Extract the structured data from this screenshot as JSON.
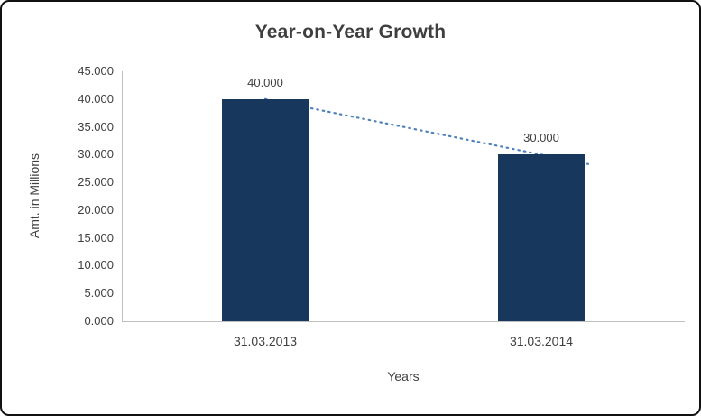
{
  "chart": {
    "title": "Year-on-Year Growth",
    "ylabel": "Amt. in Millions",
    "xlabel": "Years"
  },
  "chart_data": {
    "type": "bar",
    "title": "Year-on-Year Growth",
    "xlabel": "Years",
    "ylabel": "Amt. in Millions",
    "categories": [
      "31.03.2013",
      "31.03.2014"
    ],
    "values": [
      40,
      30
    ],
    "data_labels": [
      "40.000",
      "30.000"
    ],
    "ylim": [
      0,
      45
    ],
    "ytick_step": 5,
    "ytick_labels": [
      "0.000",
      "5.000",
      "10.000",
      "15.000",
      "20.000",
      "25.000",
      "30.000",
      "35.000",
      "40.000",
      "45.000"
    ],
    "grid": false,
    "legend": false,
    "bar_color": "#17375D",
    "trendline": {
      "color": "#4F81BD",
      "style": "dotted",
      "from": 40,
      "to": 30
    }
  }
}
